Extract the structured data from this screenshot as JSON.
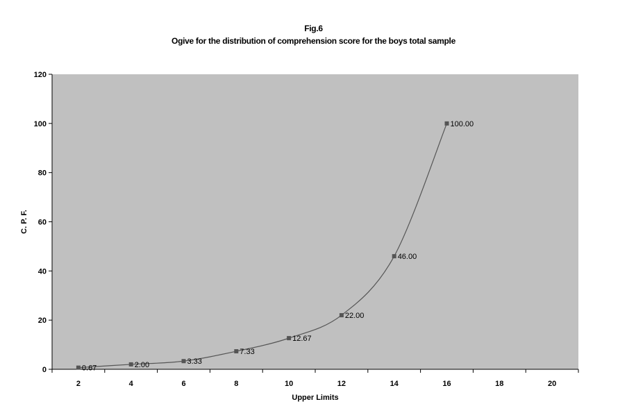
{
  "chart_data": {
    "type": "line",
    "fig_label": "Fig.6",
    "title": "Ogive for the distribution of comprehension score for the boys total sample",
    "xlabel": "Upper Limits",
    "ylabel": "C. P. F.",
    "x_categories": [
      "2",
      "4",
      "6",
      "8",
      "10",
      "12",
      "14",
      "16",
      "18",
      "20"
    ],
    "y_ticks": [
      "0",
      "20",
      "40",
      "60",
      "80",
      "100",
      "120"
    ],
    "ylim": [
      0,
      120
    ],
    "series": [
      {
        "x": [
          2,
          4,
          6,
          8,
          10,
          12,
          14,
          16
        ],
        "values": [
          0.67,
          2.0,
          3.33,
          7.33,
          12.67,
          22.0,
          46.0,
          100.0
        ],
        "labels": [
          "0.67",
          "2.00",
          "3.33",
          "7.33",
          "12.67",
          "22.00",
          "46.00",
          "100.00"
        ]
      }
    ],
    "grid": false,
    "plot_background": "#c0c0c0",
    "line_color": "#555555",
    "marker_color": "#555555"
  }
}
